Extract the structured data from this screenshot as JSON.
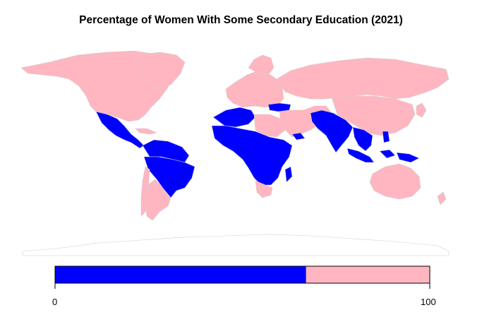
{
  "title": "Percentage of Women With Some Secondary Education (2021)",
  "colors": {
    "low": "#0000FF",
    "high": "#FFB6C1",
    "border": "#d3d3d3",
    "background": "#ffffff"
  },
  "legend": {
    "min_label": "0",
    "max_label": "100",
    "min_value": 0,
    "max_value": 100,
    "threshold": 67
  },
  "chart_data": {
    "type": "choropleth",
    "title": "Percentage of Women With Some Secondary Education (2021)",
    "scale": {
      "min": 0,
      "max": 100,
      "threshold": 67
    },
    "classes": [
      {
        "color": "#0000FF",
        "range": [
          0,
          67
        ]
      },
      {
        "color": "#FFB6C1",
        "range": [
          67,
          100
        ]
      }
    ],
    "legend_position": "bottom"
  }
}
